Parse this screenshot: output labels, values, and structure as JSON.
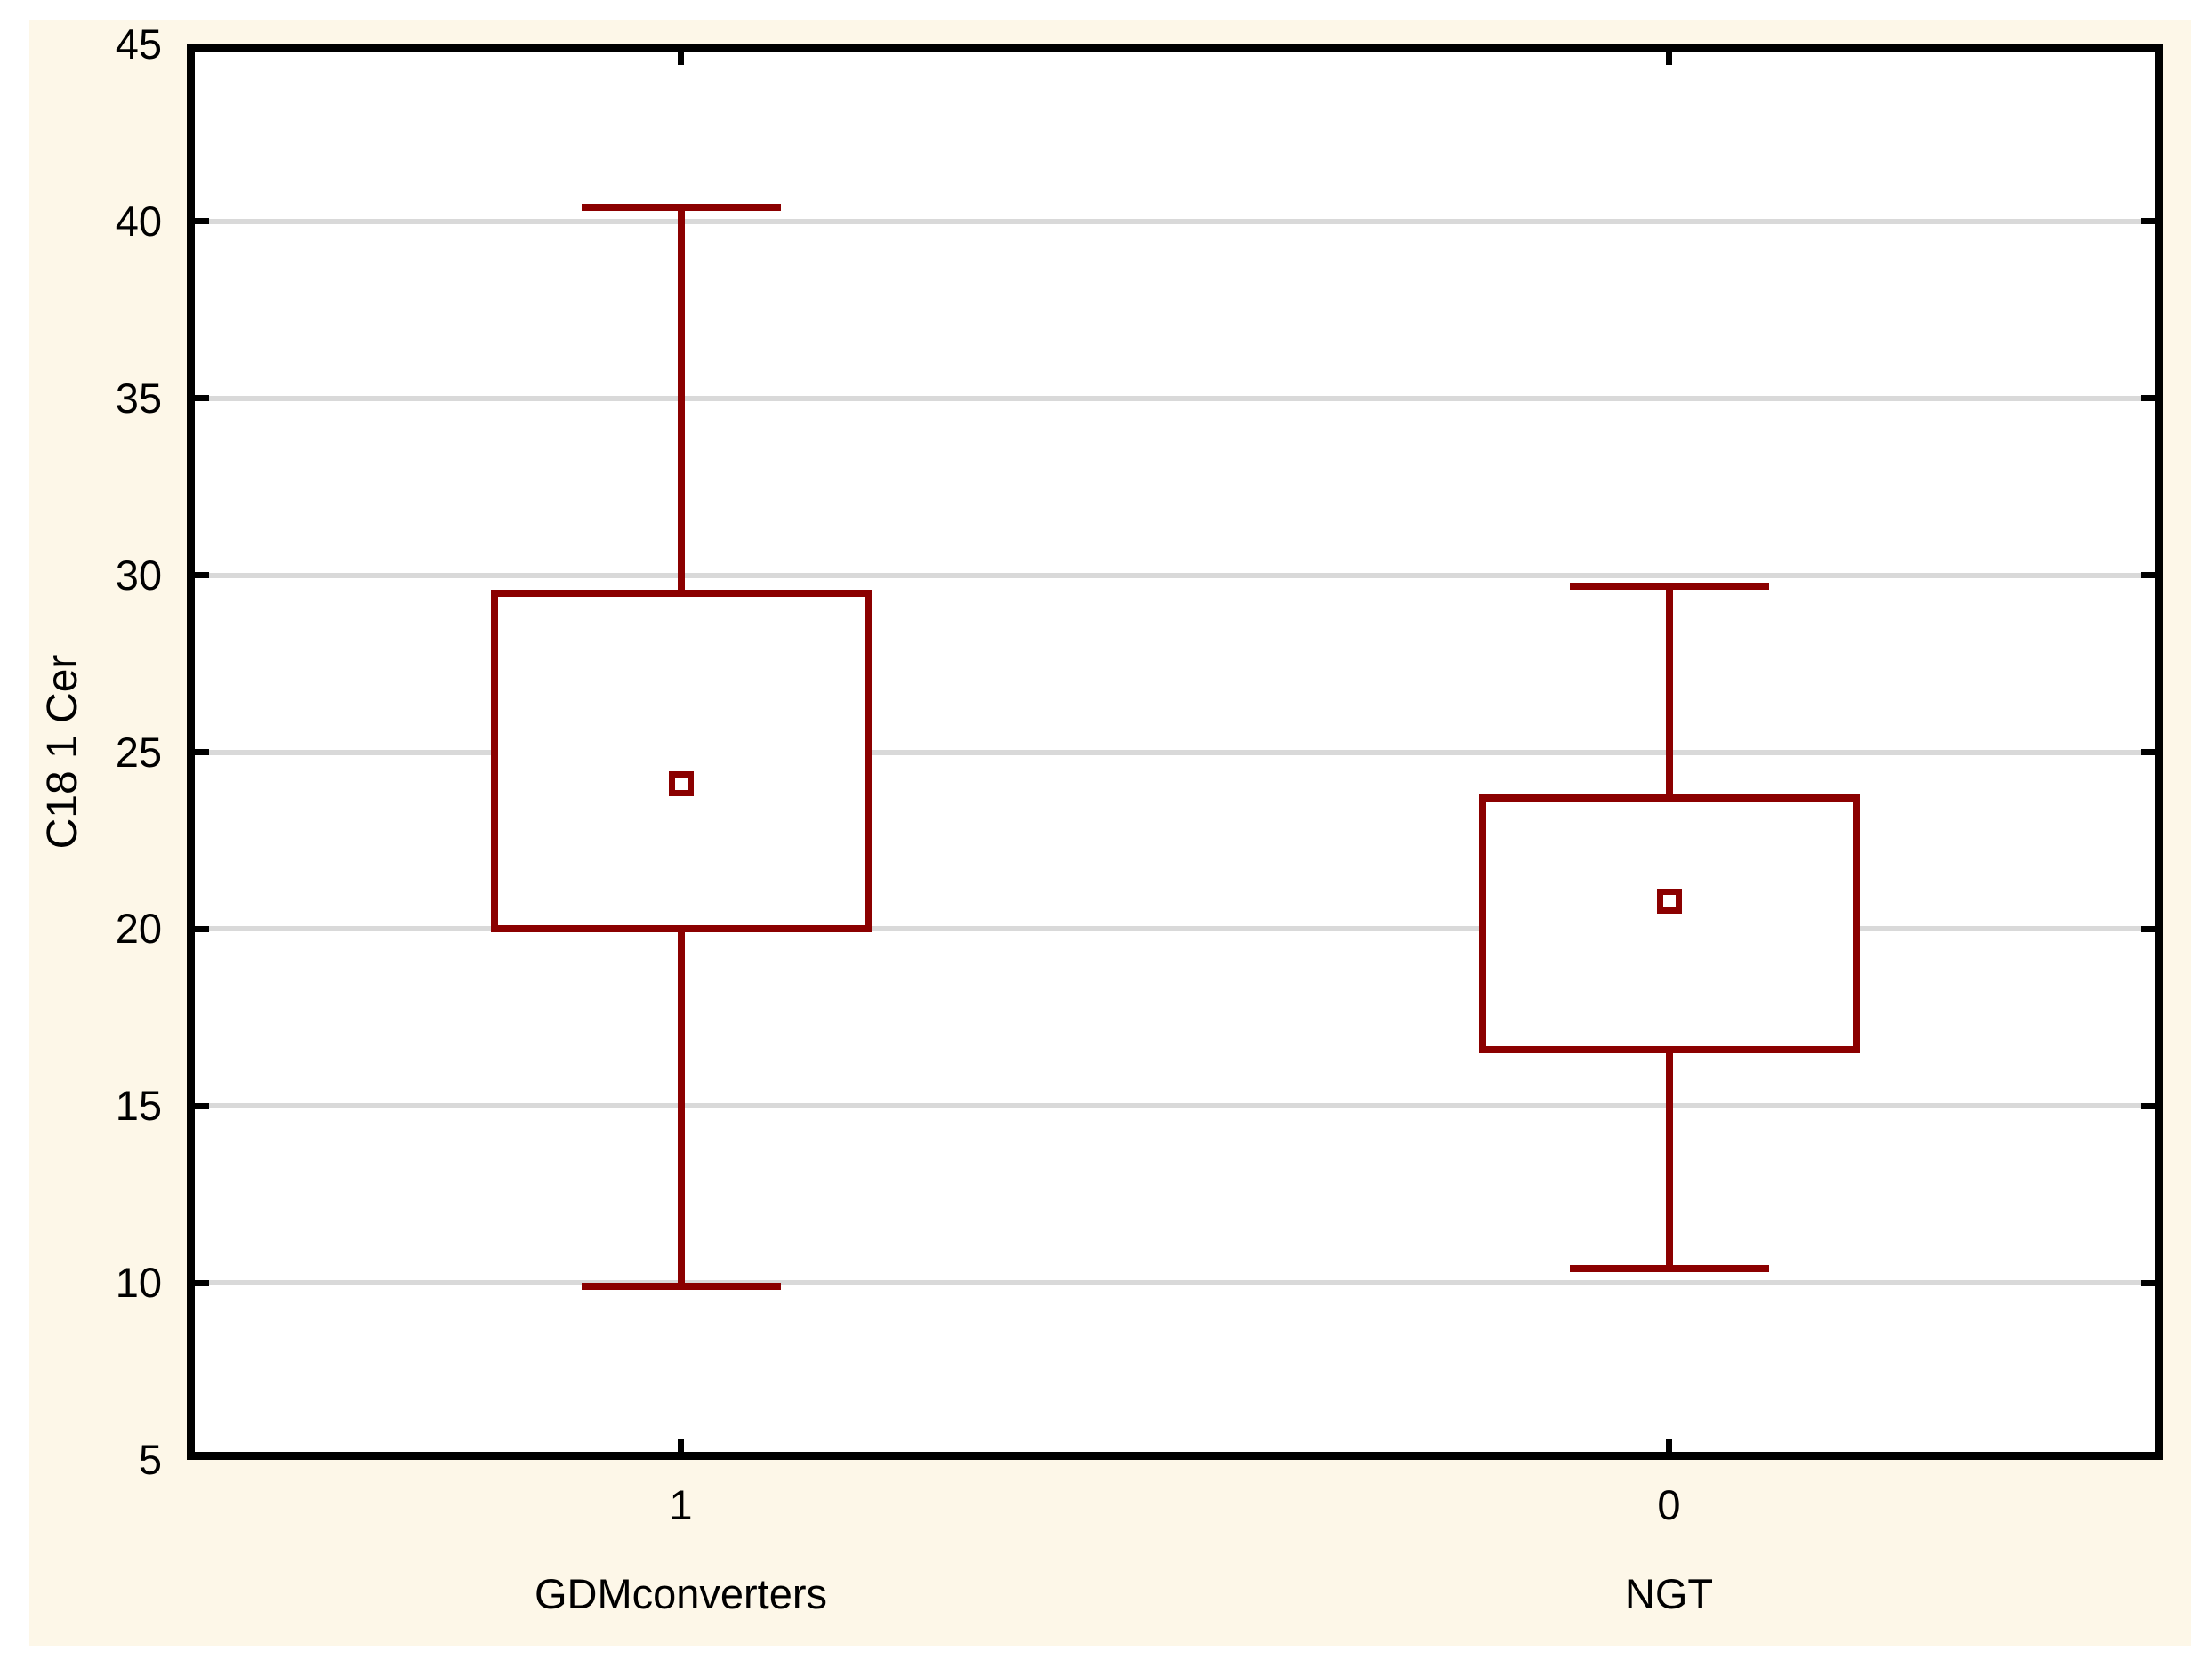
{
  "chart_data": {
    "type": "box",
    "title": "",
    "ylabel": "C18 1 Cer",
    "xlabel": "",
    "ylim": [
      5,
      45
    ],
    "ytick_step": 5,
    "yticks": [
      45,
      40,
      35,
      30,
      25,
      20,
      15,
      10,
      5
    ],
    "gridline_values": [
      40,
      35,
      30,
      25,
      20,
      15,
      10
    ],
    "grid": "horizontal",
    "legend": "none",
    "categories": [
      "1",
      "0"
    ],
    "group_labels": [
      "GDMconverters",
      "NGT"
    ],
    "series": [
      {
        "category": "1",
        "group": "GDMconverters",
        "whisker_high": 40.4,
        "box_high": 29.5,
        "mean": 24.1,
        "box_low": 20.0,
        "whisker_low": 9.9
      },
      {
        "category": "0",
        "group": "NGT",
        "whisker_high": 29.7,
        "box_high": 23.7,
        "mean": 20.8,
        "box_low": 16.6,
        "whisker_low": 10.4
      }
    ],
    "marker": "mean-square",
    "colors": {
      "box": "#8b0000",
      "grid": "#d9d9d9",
      "frame": "#000000",
      "plot_bg": "#ffffff",
      "panel_bg": "#fdf7e8",
      "page_bg": "#ffffff",
      "text": "#000000"
    }
  }
}
